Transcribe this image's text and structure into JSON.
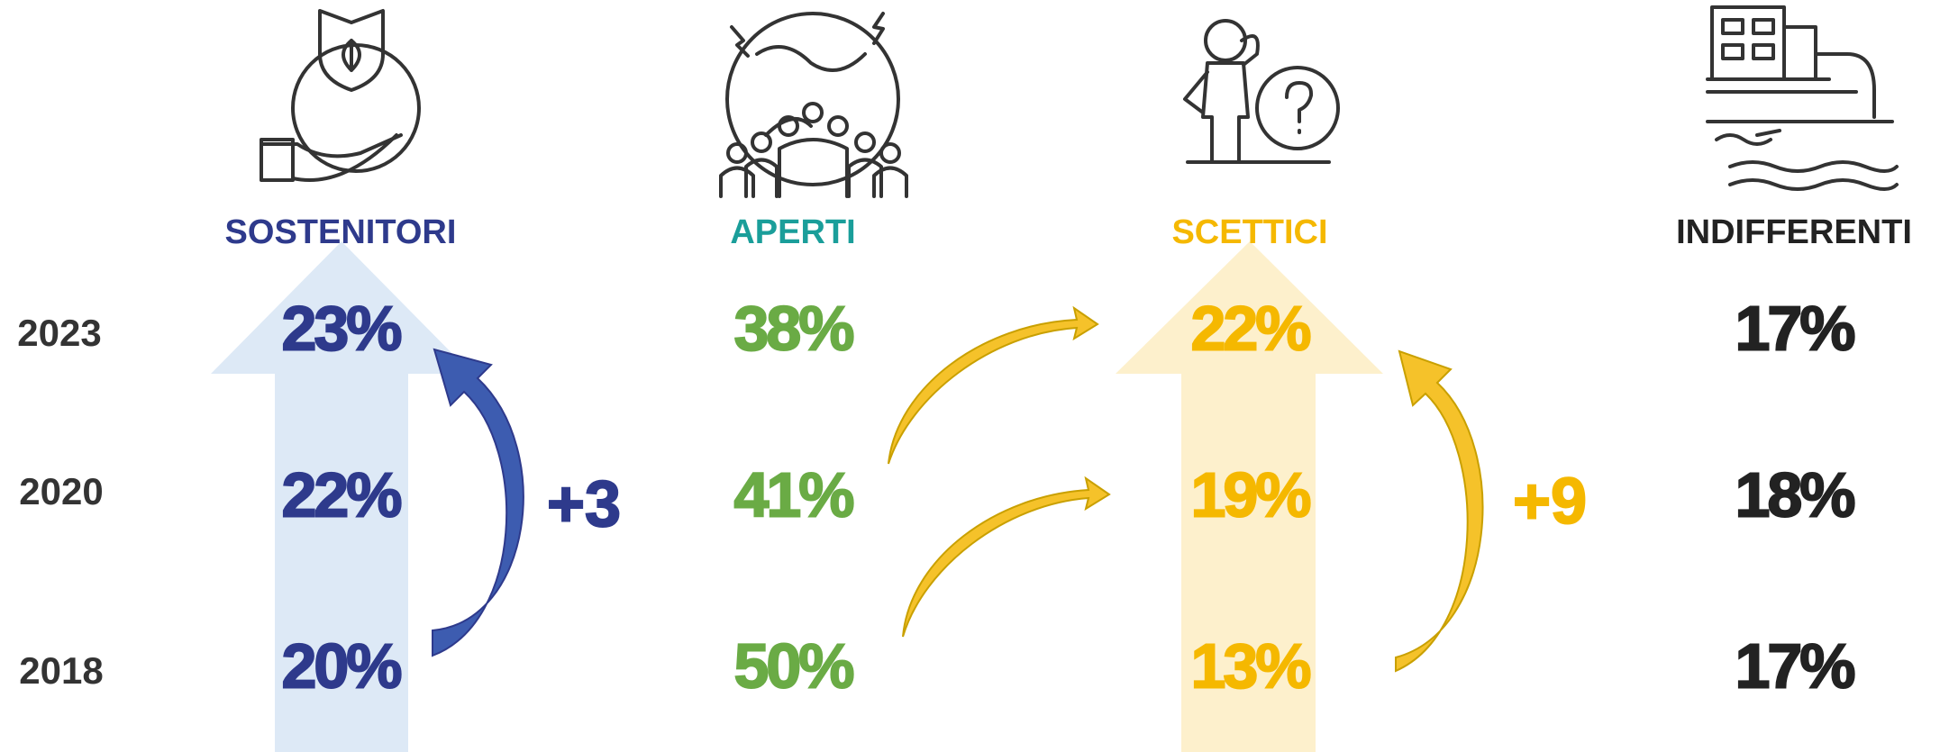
{
  "years": [
    "2023",
    "2020",
    "2018"
  ],
  "groups": [
    {
      "name": "SOSTENITORI",
      "values": [
        "23%",
        "22%",
        "20%"
      ],
      "delta": "+3"
    },
    {
      "name": "APERTI",
      "values": [
        "38%",
        "41%",
        "50%"
      ]
    },
    {
      "name": "SCETTICI",
      "values": [
        "22%",
        "19%",
        "13%"
      ],
      "delta": "+9"
    },
    {
      "name": "INDIFFERENTI",
      "values": [
        "17%",
        "18%",
        "17%"
      ]
    }
  ]
}
